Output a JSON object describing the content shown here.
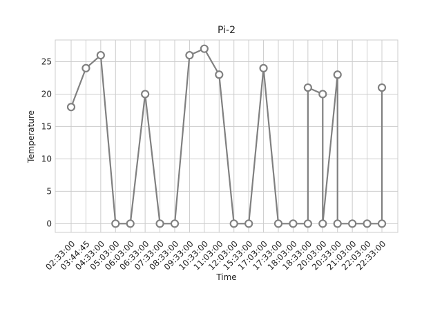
{
  "chart_data": {
    "type": "line",
    "title": "Pi-2",
    "xlabel": "Time",
    "ylabel": "Temperature",
    "ylim": [
      -1.35,
      28.35
    ],
    "yticks": [
      0,
      5,
      10,
      15,
      20,
      25
    ],
    "grid": true,
    "x_tick_labels": [
      "02:33:00",
      "03:44:45",
      "04:33:00",
      "05:03:00",
      "06:03:00",
      "06:33:00",
      "07:33:00",
      "08:33:00",
      "09:33:00",
      "10:33:00",
      "11:03:00",
      "12:03:00",
      "15:33:00",
      "17:03:00",
      "17:33:00",
      "18:03:00",
      "18:33:00",
      "20:03:00",
      "20:33:00",
      "21:03:00",
      "22:03:00",
      "22:33:00"
    ],
    "series": [
      {
        "color": "#808080",
        "points": [
          {
            "x": "02:33:00",
            "y": 18
          },
          {
            "x": "03:44:45",
            "y": 24
          },
          {
            "x": "04:33:00",
            "y": 26
          },
          {
            "x": "05:03:00",
            "y": 0
          },
          {
            "x": "06:03:00",
            "y": 0
          },
          {
            "x": "06:33:00",
            "y": 20
          },
          {
            "x": "07:33:00",
            "y": 0
          },
          {
            "x": "08:33:00",
            "y": 0
          },
          {
            "x": "09:33:00",
            "y": 26
          },
          {
            "x": "10:33:00",
            "y": 27
          },
          {
            "x": "11:03:00",
            "y": 23
          },
          {
            "x": "12:03:00",
            "y": 0
          },
          {
            "x": "15:33:00",
            "y": 0
          },
          {
            "x": "17:03:00",
            "y": 24
          },
          {
            "x": "17:33:00",
            "y": 0
          },
          {
            "x": "18:03:00",
            "y": 0
          },
          {
            "x": "18:33:00",
            "y": 0
          },
          {
            "x": "18:33:00",
            "y": 21
          },
          {
            "x": "20:03:00",
            "y": 20
          },
          {
            "x": "20:03:00",
            "y": 0
          },
          {
            "x": "20:33:00",
            "y": 23
          },
          {
            "x": "20:33:00",
            "y": 0
          },
          {
            "x": "21:03:00",
            "y": 0
          },
          {
            "x": "22:03:00",
            "y": 0
          },
          {
            "x": "22:33:00",
            "y": 0
          },
          {
            "x": "22:33:00",
            "y": 21
          }
        ]
      }
    ]
  }
}
